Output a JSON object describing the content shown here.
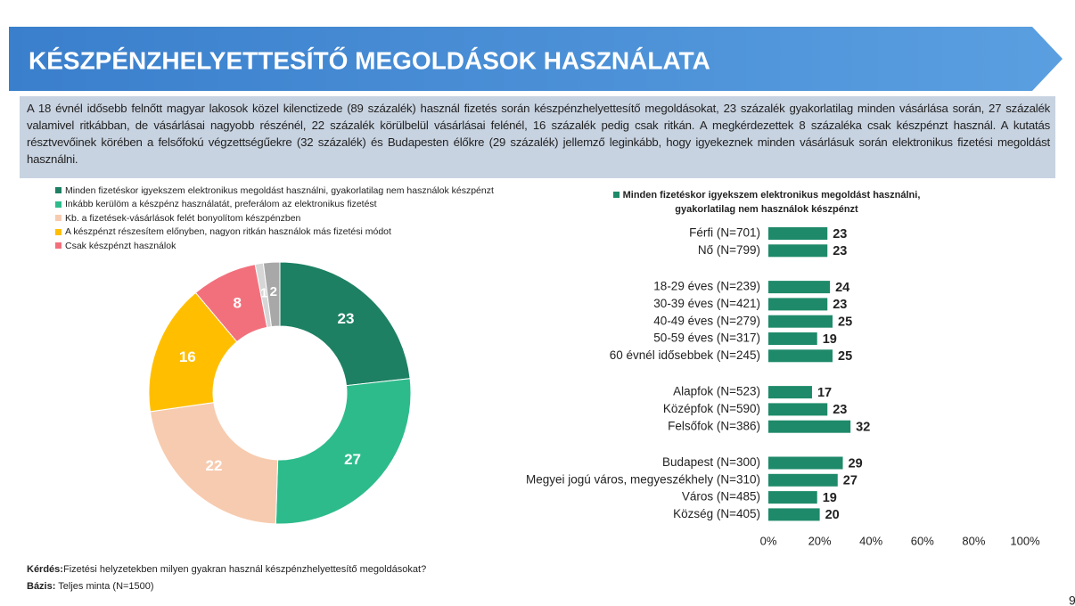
{
  "header": {
    "title": "KÉSZPÉNZHELYETTESÍTŐ MEGOLDÁSOK HASZNÁLATA",
    "paragraph": "A 18 évnél idősebb felnőtt magyar lakosok közel kilenctizede (89 százalék) használ fizetés során készpénzhelyettesítő megoldásokat, 23 százalék gyakorlatilag minden vásárlása során, 27 százalék valamivel ritkábban, de vásárlásai nagyobb részénél, 22 százalék körülbelül vásárlásai felénél, 16 százalék pedig csak ritkán. A megkérdezettek 8 százaléka csak készpénzt használ. A kutatás résztvevőinek körében a felsőfokú végzettségűekre (32 százalék) és Budapesten élőkre (29 százalék) jellemző leginkább, hogy igyekeznek minden vásárlásuk során elektronikus fizetési megoldást használni."
  },
  "chart_data": [
    {
      "type": "pie",
      "categories": [
        "Minden fizetéskor igyekszem elektronikus megoldást használni, gyakorlatilag nem használok készpénzt",
        "Inkább kerülöm a készpénz használatát, preferálom az elektronikus fizetést",
        "Kb. a fizetések-vásárlások felét bonyolítom készpénzben",
        "A készpénzt részesítem előnyben, nagyon ritkán használok más fizetési módot",
        "Csak készpénzt használok",
        null,
        null
      ],
      "values": [
        23,
        27,
        22,
        16,
        8,
        1,
        2
      ],
      "colors": [
        "#1d8063",
        "#2dbb8b",
        "#f7cbaf",
        "#ffbf00",
        "#f2707c",
        "#d6d6d6",
        "#a8a8a8"
      ]
    },
    {
      "type": "hbar",
      "categories": [
        "Férfi (N=701)",
        "Nő (N=799)",
        "18-29 éves (N=239)",
        "30-39 éves (N=421)",
        "40-49 éves (N=279)",
        "50-59 éves (N=317)",
        "60 évnél idősebbek (N=245)",
        "Alapfok (N=523)",
        "Középfok (N=590)",
        "Felsőfok (N=386)",
        "Budapest (N=300)",
        "Megyei jogú város, megyeszékhely (N=310)",
        "Város (N=485)",
        "Község (N=405)"
      ],
      "series": [
        {
          "name": "Minden fizetéskor igyekszem elektronikus megoldást használni, gyakorlatilag nem használok készpénzt",
          "color": "#1e8a69",
          "values": [
            23,
            23,
            24,
            23,
            25,
            19,
            25,
            17,
            23,
            32,
            29,
            27,
            19,
            20
          ]
        }
      ],
      "xlim": [
        0,
        100
      ],
      "xticks": [
        {
          "value": 0,
          "label": "0%"
        },
        {
          "value": 20,
          "label": "20%"
        },
        {
          "value": 40,
          "label": "40%"
        },
        {
          "value": 60,
          "label": "60%"
        },
        {
          "value": 80,
          "label": "80%"
        },
        {
          "value": 100,
          "label": "100%"
        }
      ]
    }
  ],
  "footer": {
    "question_label": "Kérdés:",
    "question": "Fizetési helyzetekben milyen gyakran használ készpénzhelyettesítő megoldásokat?",
    "base_label": "Bázis:",
    "base": "Teljes minta (N=1500)",
    "page": "9"
  }
}
